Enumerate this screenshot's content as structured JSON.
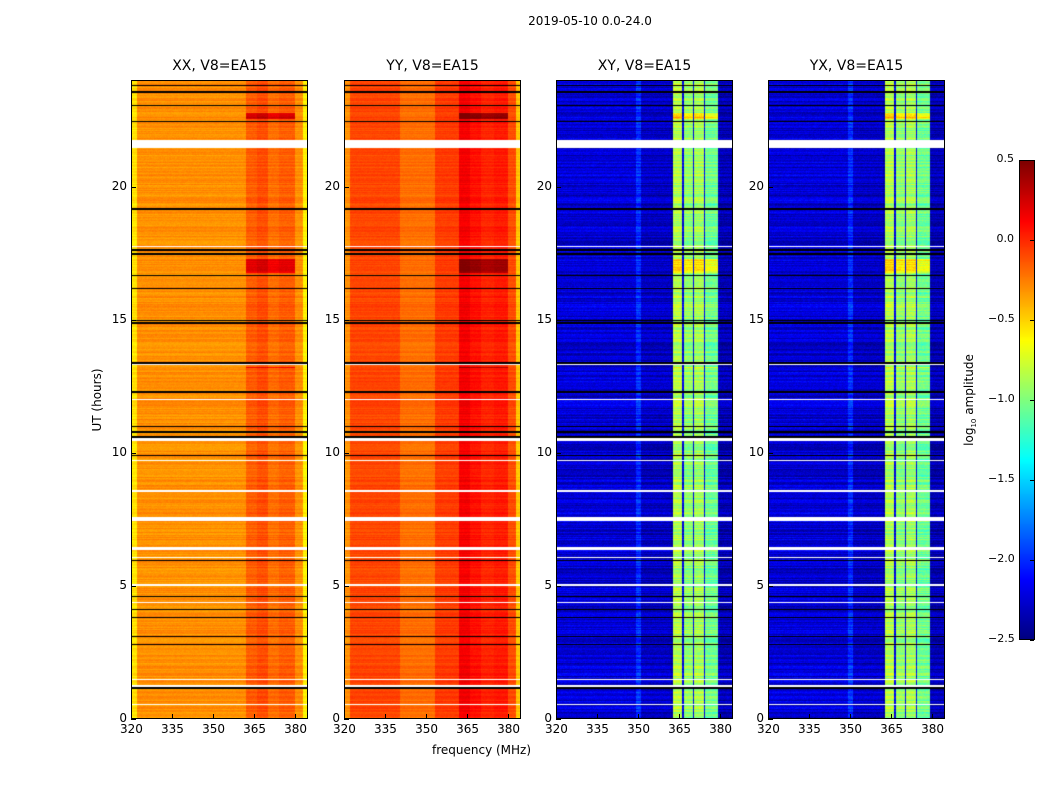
{
  "suptitle": "2019-05-10 0.0-24.0",
  "chart_data": {
    "type": "heatmap",
    "title": "2019-05-10 0.0-24.0",
    "xlabel": "frequency (MHz)",
    "ylabel": "UT (hours)",
    "xlim": [
      320,
      384.7
    ],
    "ylim": [
      0,
      24
    ],
    "xticks": [
      "320",
      "335",
      "350",
      "365",
      "380"
    ],
    "xtick_values": [
      320,
      335,
      350,
      365,
      380
    ],
    "yticks": [
      "0",
      "5",
      "10",
      "15",
      "20"
    ],
    "ytick_values": [
      0,
      5,
      10,
      15,
      20
    ],
    "colormap": "jet",
    "clim": [
      -2.5,
      0.5
    ],
    "colorbar": {
      "label_main": "log",
      "label_sub": "10",
      "label_rest": " amplitude",
      "ticks": [
        "0.5",
        "0.0",
        "−0.5",
        "−1.0",
        "−1.5",
        "−2.0",
        "−2.5"
      ],
      "tick_values": [
        0.5,
        0.0,
        -0.5,
        -1.0,
        -1.5,
        -2.0,
        -2.5
      ]
    },
    "flagged_hours_white": [
      [
        21.5,
        21.8
      ],
      [
        17.75,
        17.8
      ],
      [
        13.3,
        13.35
      ],
      [
        12.0,
        12.05
      ],
      [
        10.45,
        10.55
      ],
      [
        9.7,
        9.75
      ],
      [
        8.55,
        8.62
      ],
      [
        7.45,
        7.6
      ],
      [
        6.35,
        6.45
      ],
      [
        6.05,
        6.1
      ],
      [
        5.0,
        5.05
      ],
      [
        4.35,
        4.4
      ],
      [
        1.45,
        1.5
      ],
      [
        1.2,
        1.25
      ],
      [
        0.5,
        0.55
      ]
    ],
    "black_line_hours": [
      23.85,
      23.6,
      23.1,
      22.5,
      19.2,
      17.65,
      17.5,
      16.7,
      16.2,
      15.0,
      14.9,
      13.4,
      12.3,
      11.0,
      10.8,
      10.6,
      9.9,
      5.95,
      4.6,
      4.1,
      3.8,
      3.1,
      2.8,
      1.15
    ],
    "panels": [
      {
        "title": "XX, V8=EA15",
        "base": -0.35,
        "noise": 0.06,
        "profile": [
          [
            320,
            321.5,
            -0.55
          ],
          [
            321.5,
            362,
            -0.3
          ],
          [
            362,
            366,
            -0.15
          ],
          [
            366,
            370,
            -0.1
          ],
          [
            370,
            374,
            -0.2
          ],
          [
            374,
            380,
            -0.15
          ],
          [
            380,
            383,
            -0.3
          ],
          [
            383,
            384.7,
            -0.6
          ]
        ]
      },
      {
        "title": "YY, V8=EA15",
        "base": -0.1,
        "noise": 0.05,
        "profile": [
          [
            320,
            321.5,
            -0.3
          ],
          [
            321.5,
            340,
            -0.08
          ],
          [
            340,
            353,
            -0.2
          ],
          [
            353,
            362,
            -0.05
          ],
          [
            362,
            366,
            0.15
          ],
          [
            366,
            370,
            0.08
          ],
          [
            370,
            375,
            0.02
          ],
          [
            375,
            380,
            0.05
          ],
          [
            380,
            383,
            -0.1
          ],
          [
            383,
            384.7,
            -0.45
          ]
        ]
      },
      {
        "title": "XY, V8=EA15",
        "base": -2.25,
        "noise": 0.15,
        "profile": [
          [
            320,
            349,
            -2.25
          ],
          [
            349,
            351,
            -2.0
          ],
          [
            351,
            362,
            -2.3
          ],
          [
            362,
            362.6,
            -2.4
          ],
          [
            362.6,
            366,
            -0.85
          ],
          [
            366,
            366.6,
            -2.2
          ],
          [
            366.6,
            370,
            -0.95
          ],
          [
            370,
            370.6,
            -2.2
          ],
          [
            370.6,
            374,
            -0.9
          ],
          [
            374,
            374.6,
            -2.2
          ],
          [
            374.6,
            379.5,
            -1.05
          ],
          [
            379.5,
            384.7,
            -2.35
          ]
        ]
      },
      {
        "title": "YX, V8=EA15",
        "base": -2.25,
        "noise": 0.15,
        "profile": [
          [
            320,
            349,
            -2.25
          ],
          [
            349,
            351,
            -2.0
          ],
          [
            351,
            362,
            -2.3
          ],
          [
            362,
            362.6,
            -2.4
          ],
          [
            362.6,
            366,
            -0.85
          ],
          [
            366,
            366.6,
            -2.2
          ],
          [
            366.6,
            370,
            -0.95
          ],
          [
            370,
            370.6,
            -2.2
          ],
          [
            370.6,
            374,
            -0.9
          ],
          [
            374,
            374.6,
            -2.2
          ],
          [
            374.6,
            379.5,
            -1.05
          ],
          [
            379.5,
            384.7,
            -2.35
          ]
        ]
      }
    ],
    "rfi_events_hours": [
      [
        22.6,
        22.8,
        0.4
      ],
      [
        16.8,
        17.3,
        0.35
      ],
      [
        13.2,
        13.25,
        0.3
      ]
    ]
  }
}
